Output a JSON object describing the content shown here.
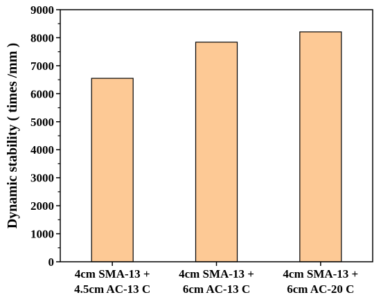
{
  "chart_data": {
    "type": "bar",
    "categories": [
      [
        "4cm SMA-13 +",
        "4.5cm AC-13 C"
      ],
      [
        "4cm SMA-13 +",
        "6cm AC-13 C"
      ],
      [
        "4cm SMA-13 +",
        "6cm AC-20 C"
      ]
    ],
    "values": [
      6550,
      7840,
      8210
    ],
    "title": "",
    "xlabel": "",
    "ylabel": "Dynamic stability ( times /mm )",
    "ylim": [
      0,
      9000
    ],
    "yticks": [
      0,
      1000,
      2000,
      3000,
      4000,
      5000,
      6000,
      7000,
      8000,
      9000
    ],
    "grid": false,
    "bar_color": "#FDC995",
    "bar_edge_color": "#000000"
  }
}
